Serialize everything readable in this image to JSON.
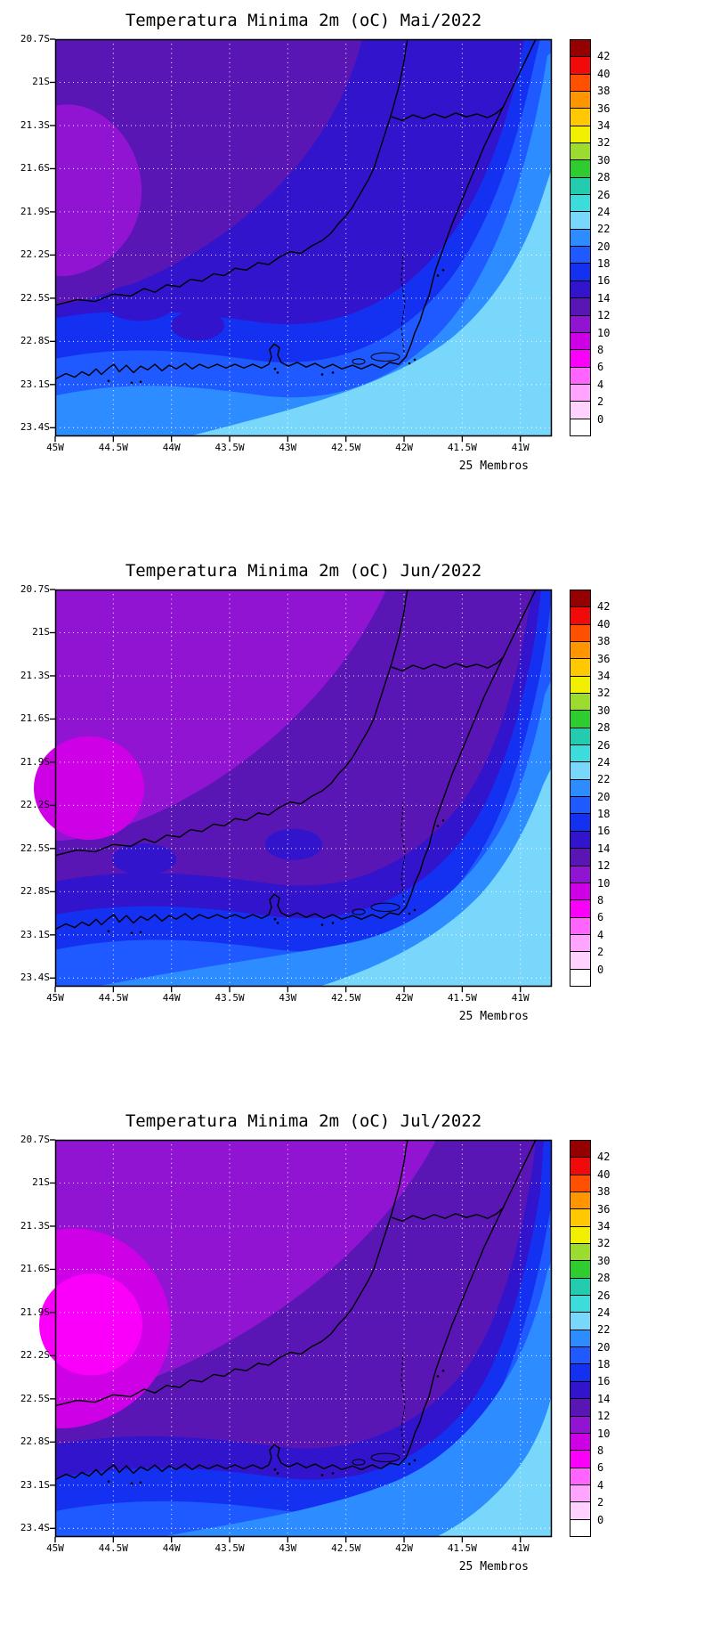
{
  "panels": [
    {
      "title": "Temperatura Minima 2m (oC) Mai/2022",
      "month": "Mai/2022",
      "caption": "25 Membros"
    },
    {
      "title": "Temperatura Minima 2m (oC) Jun/2022",
      "month": "Jun/2022",
      "caption": "25 Membros"
    },
    {
      "title": "Temperatura Minima 2m (oC) Jul/2022",
      "month": "Jul/2022",
      "caption": "25 Membros"
    }
  ],
  "axes": {
    "lat_ticks": [
      {
        "v": 20.7,
        "label": "20.7S"
      },
      {
        "v": 21.0,
        "label": "21S"
      },
      {
        "v": 21.3,
        "label": "21.3S"
      },
      {
        "v": 21.6,
        "label": "21.6S"
      },
      {
        "v": 21.9,
        "label": "21.9S"
      },
      {
        "v": 22.2,
        "label": "22.2S"
      },
      {
        "v": 22.5,
        "label": "22.5S"
      },
      {
        "v": 22.8,
        "label": "22.8S"
      },
      {
        "v": 23.1,
        "label": "23.1S"
      },
      {
        "v": 23.4,
        "label": "23.4S"
      }
    ],
    "lon_ticks": [
      {
        "v": 45.0,
        "label": "45W"
      },
      {
        "v": 44.5,
        "label": "44.5W"
      },
      {
        "v": 44.0,
        "label": "44W"
      },
      {
        "v": 43.5,
        "label": "43.5W"
      },
      {
        "v": 43.0,
        "label": "43W"
      },
      {
        "v": 42.5,
        "label": "42.5W"
      },
      {
        "v": 42.0,
        "label": "42W"
      },
      {
        "v": 41.5,
        "label": "41.5W"
      },
      {
        "v": 41.0,
        "label": "41W"
      }
    ],
    "lat_range": [
      20.7,
      23.46
    ],
    "lon_range": [
      45.0,
      40.73
    ]
  },
  "colorbar": {
    "levels": [
      0,
      2,
      4,
      6,
      8,
      10,
      12,
      14,
      16,
      18,
      20,
      22,
      24,
      26,
      28,
      30,
      32,
      34,
      36,
      38,
      40,
      42
    ],
    "segment_colors_bottom_to_top": [
      "#ffffff",
      "#ffd2ff",
      "#ffa5ff",
      "#ff64ff",
      "#fa00fa",
      "#cd00e6",
      "#9114d2",
      "#5a16b4",
      "#3214cd",
      "#1430f0",
      "#1e5aff",
      "#2d8cff",
      "#78d7fa",
      "#3cdcdc",
      "#23ccae",
      "#2ecc2e",
      "#9bdc2e",
      "#f0f000",
      "#ffc800",
      "#ff9600",
      "#ff5000",
      "#f00a0a",
      "#960000"
    ],
    "units": "oC",
    "position": "right"
  },
  "chart_data": [
    {
      "type": "heatmap",
      "title": "Temperatura Minima 2m (oC) Mai/2022",
      "annotation": "25 Membros",
      "units": "oC",
      "legend_position": "right",
      "x_ticks": [
        "45W",
        "44.5W",
        "44W",
        "43.5W",
        "43W",
        "42.5W",
        "42W",
        "41.5W",
        "41W"
      ],
      "y_ticks": [
        "20.7S",
        "21S",
        "21.3S",
        "21.6S",
        "21.9S",
        "22.2S",
        "22.5S",
        "22.8S",
        "23.1S",
        "23.4S"
      ],
      "colorbar_range": [
        0,
        42
      ],
      "colorbar_step": 2,
      "lon_cols_W": [
        44.75,
        44.25,
        43.75,
        43.25,
        42.75,
        42.25,
        41.75,
        41.25,
        40.85
      ],
      "lat_rows_S": [
        21.0,
        21.5,
        22.0,
        22.5,
        23.2
      ],
      "values_degC": [
        [
          13,
          13,
          14,
          15,
          15,
          16,
          17,
          18,
          19
        ],
        [
          12,
          13,
          13,
          14,
          15,
          16,
          17,
          18,
          20
        ],
        [
          13,
          14,
          14,
          15,
          16,
          17,
          18,
          20,
          22
        ],
        [
          15,
          16,
          17,
          17,
          18,
          19,
          20,
          22,
          23
        ],
        [
          19,
          20,
          20,
          21,
          21,
          22,
          22,
          23,
          23
        ]
      ],
      "values_note": "estimated from contour shading"
    },
    {
      "type": "heatmap",
      "title": "Temperatura Minima 2m (oC) Jun/2022",
      "annotation": "25 Membros",
      "units": "oC",
      "legend_position": "right",
      "x_ticks": [
        "45W",
        "44.5W",
        "44W",
        "43.5W",
        "43W",
        "42.5W",
        "42W",
        "41.5W",
        "41W"
      ],
      "y_ticks": [
        "20.7S",
        "21S",
        "21.3S",
        "21.6S",
        "21.9S",
        "22.2S",
        "22.5S",
        "22.8S",
        "23.1S",
        "23.4S"
      ],
      "colorbar_range": [
        0,
        42
      ],
      "colorbar_step": 2,
      "lon_cols_W": [
        44.75,
        44.25,
        43.75,
        43.25,
        42.75,
        42.25,
        41.75,
        41.25,
        40.85
      ],
      "lat_rows_S": [
        21.0,
        21.5,
        22.0,
        22.5,
        23.2
      ],
      "values_degC": [
        [
          11,
          12,
          12,
          13,
          14,
          15,
          16,
          17,
          19
        ],
        [
          9,
          10,
          11,
          12,
          13,
          15,
          16,
          18,
          20
        ],
        [
          10,
          11,
          12,
          13,
          14,
          16,
          17,
          19,
          21
        ],
        [
          13,
          14,
          15,
          16,
          17,
          18,
          19,
          21,
          22
        ],
        [
          17,
          18,
          19,
          19,
          20,
          21,
          21,
          22,
          23
        ]
      ],
      "values_note": "estimated from contour shading"
    },
    {
      "type": "heatmap",
      "title": "Temperatura Minima 2m (oC) Jul/2022",
      "annotation": "25 Membros",
      "units": "oC",
      "legend_position": "right",
      "x_ticks": [
        "45W",
        "44.5W",
        "44W",
        "43.5W",
        "43W",
        "42.5W",
        "42W",
        "41.5W",
        "41W"
      ],
      "y_ticks": [
        "20.7S",
        "21S",
        "21.3S",
        "21.6S",
        "21.9S",
        "22.2S",
        "22.5S",
        "22.8S",
        "23.1S",
        "23.4S"
      ],
      "colorbar_range": [
        0,
        42
      ],
      "colorbar_step": 2,
      "lon_cols_W": [
        44.75,
        44.25,
        43.75,
        43.25,
        42.75,
        42.25,
        41.75,
        41.25,
        40.85
      ],
      "lat_rows_S": [
        21.0,
        21.5,
        22.0,
        22.5,
        23.2
      ],
      "values_degC": [
        [
          10,
          11,
          11,
          12,
          13,
          14,
          15,
          16,
          18
        ],
        [
          7,
          9,
          10,
          11,
          12,
          14,
          15,
          17,
          19
        ],
        [
          9,
          10,
          11,
          12,
          13,
          15,
          16,
          18,
          20
        ],
        [
          12,
          13,
          14,
          15,
          16,
          17,
          18,
          20,
          21
        ],
        [
          16,
          17,
          18,
          18,
          19,
          20,
          20,
          21,
          22
        ]
      ],
      "values_note": "estimated from contour shading"
    }
  ]
}
